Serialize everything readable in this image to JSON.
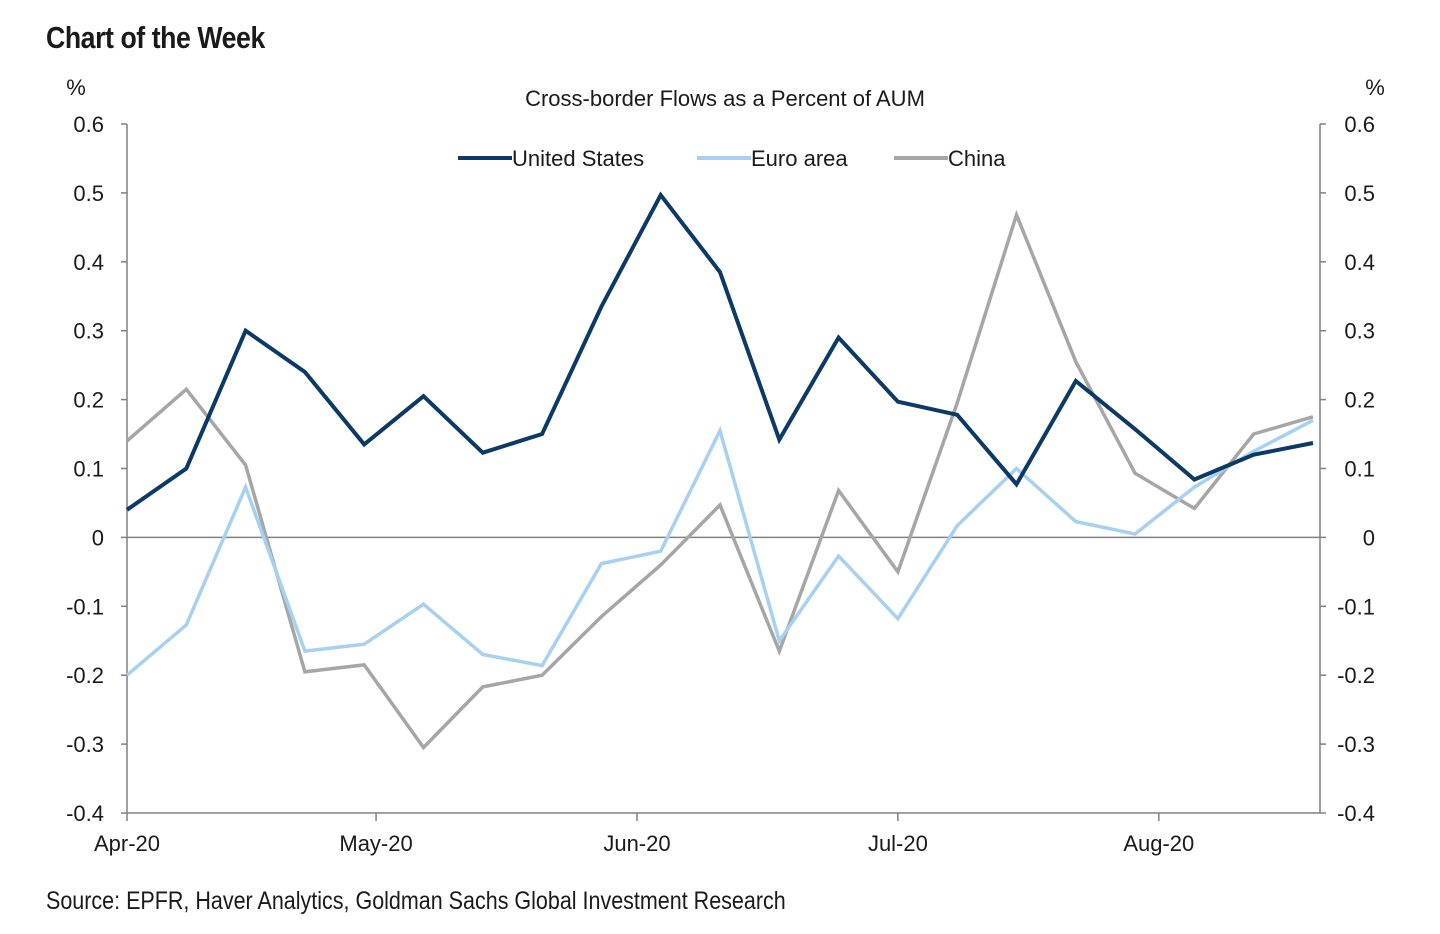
{
  "heading": "Chart of the Week",
  "source": "Source: EPFR, Haver Analytics, Goldman Sachs Global Investment Research",
  "chart_data": {
    "type": "line",
    "title": "Cross-border  Flows  as  a  Percent  of AUM",
    "ylabel_left": "%",
    "ylabel_right": "%",
    "ylim": [
      -0.4,
      0.6
    ],
    "yticks": [
      0.6,
      0.5,
      0.4,
      0.3,
      0.2,
      0.1,
      0,
      -0.1,
      -0.2,
      -0.3,
      -0.4
    ],
    "ytick_labels": [
      "0.6",
      "0.5",
      "0.4",
      "0.3",
      "0.2",
      "0.1",
      "0",
      "-0.1",
      "-0.2",
      "-0.3",
      "-0.4"
    ],
    "x_tick_labels": [
      "Apr-20",
      "May-20",
      "Jun-20",
      "Jul-20",
      "Aug-20"
    ],
    "x_tick_index": [
      0,
      4.2,
      8.6,
      13,
      17.4
    ],
    "legend_position": "top-center",
    "grid": false,
    "zero_line": true,
    "series": [
      {
        "name": "United States",
        "color": "#0b3a66",
        "values": [
          0.04,
          0.1,
          0.3,
          0.24,
          0.135,
          0.205,
          0.123,
          0.15,
          0.335,
          0.497,
          0.385,
          0.142,
          0.29,
          0.197,
          0.178,
          0.077,
          0.227,
          0.157,
          0.084,
          0.12,
          0.137
        ]
      },
      {
        "name": "Euro area",
        "color": "#a6d1f2",
        "values": [
          -0.2,
          -0.127,
          0.073,
          -0.165,
          -0.155,
          -0.097,
          -0.17,
          -0.186,
          -0.038,
          -0.02,
          0.155,
          -0.15,
          -0.027,
          -0.118,
          0.017,
          0.1,
          0.023,
          0.005,
          0.073,
          0.125,
          0.17
        ]
      },
      {
        "name": "China",
        "color": "#a6a6a6",
        "values": [
          0.14,
          0.215,
          0.105,
          -0.195,
          -0.185,
          -0.305,
          -0.217,
          -0.2,
          -0.115,
          -0.04,
          0.047,
          -0.165,
          0.068,
          -0.05,
          0.195,
          0.468,
          0.255,
          0.093,
          0.042,
          0.15,
          0.175
        ]
      }
    ]
  }
}
